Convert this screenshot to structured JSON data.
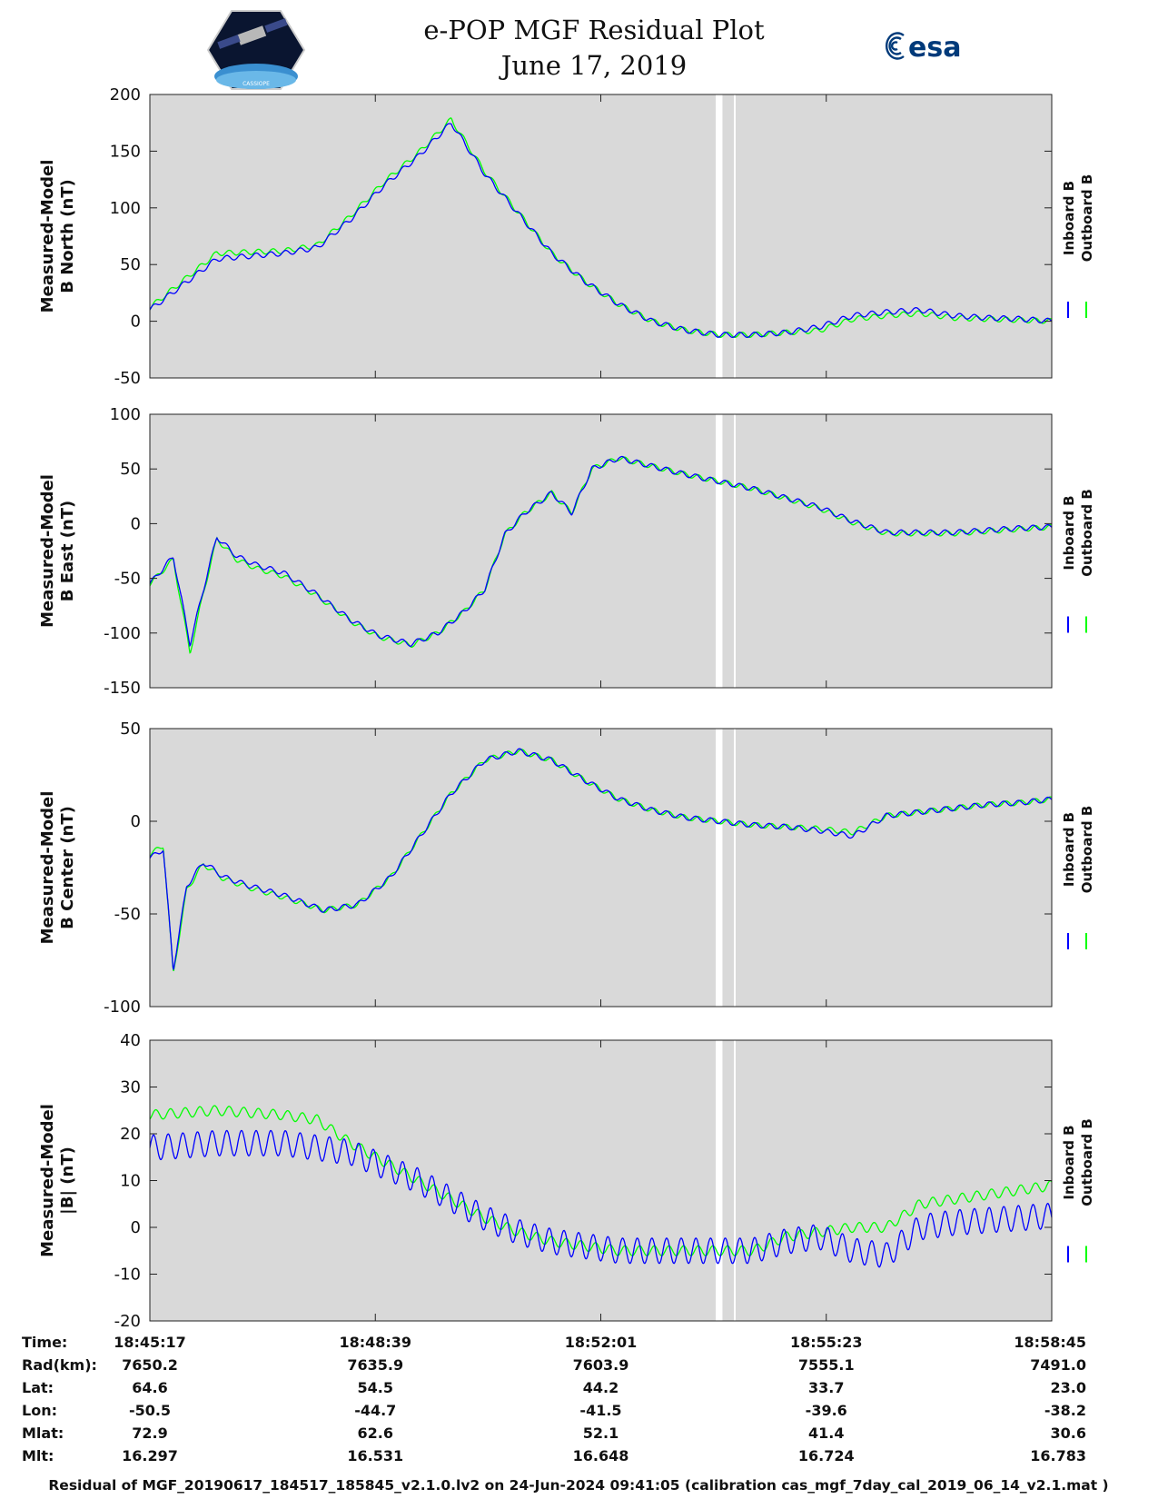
{
  "title": "e-POP MGF Residual Plot",
  "subtitle": "June 17, 2019",
  "logos": {
    "left": "CASSIOPE",
    "right": "esa"
  },
  "colors": {
    "inboard": "#0000ff",
    "outboard": "#00ff00",
    "panel_bg": "#d9d9d9",
    "gap": "#ffffff"
  },
  "legend": {
    "inboard": "Inboard B",
    "outboard": "Outboard B"
  },
  "chart_data": [
    {
      "type": "line",
      "title": "",
      "ylabel_line1": "Measured-Model",
      "ylabel_line2": "B North (nT)",
      "ylim": [
        -50,
        200
      ],
      "yticks": [
        -50,
        0,
        50,
        100,
        150,
        200
      ],
      "ytick_labels": [
        "-50",
        "0",
        "50",
        "100",
        "150",
        "200"
      ],
      "x_minutes": [
        0,
        1,
        2,
        2.5,
        3,
        3.5,
        4,
        4.5,
        5,
        5.5,
        6,
        6.5,
        7,
        7.5,
        8,
        8.5,
        9,
        9.5,
        10,
        10.5,
        11,
        11.5,
        12,
        12.5,
        13,
        13.5
      ],
      "series": [
        {
          "name": "Inboard B",
          "values": [
            10,
            55,
            60,
            65,
            90,
            120,
            145,
            175,
            130,
            95,
            60,
            35,
            15,
            0,
            -8,
            -12,
            -12,
            -10,
            -5,
            5,
            8,
            10,
            5,
            3,
            2,
            0
          ]
        },
        {
          "name": "Outboard B",
          "values": [
            12,
            60,
            62,
            67,
            93,
            123,
            148,
            178,
            132,
            96,
            60,
            35,
            15,
            0,
            -8,
            -12,
            -12,
            -10,
            -8,
            2,
            5,
            7,
            3,
            2,
            1,
            0
          ]
        }
      ]
    },
    {
      "type": "line",
      "title": "",
      "ylabel_line1": "Measured-Model",
      "ylabel_line2": "B East (nT)",
      "ylim": [
        -150,
        100
      ],
      "yticks": [
        -150,
        -100,
        -50,
        0,
        50,
        100
      ],
      "ytick_labels": [
        "-150",
        "-100",
        "-50",
        "0",
        "50",
        "100"
      ],
      "x_minutes": [
        0,
        0.35,
        0.6,
        0.8,
        1.0,
        1.3,
        1.6,
        2.0,
        2.5,
        3.0,
        3.4,
        3.9,
        4.3,
        4.7,
        5.0,
        5.3,
        5.6,
        6.0,
        6.3,
        6.6,
        7.0,
        8.0,
        9.0,
        10.0,
        10.5,
        11.0,
        12.0,
        13.0,
        13.5
      ],
      "series": [
        {
          "name": "Inboard B",
          "values": [
            -55,
            -30,
            -110,
            -60,
            -12,
            -30,
            -38,
            -45,
            -65,
            -88,
            -102,
            -110,
            -100,
            -80,
            -60,
            -10,
            10,
            28,
            10,
            50,
            60,
            45,
            32,
            15,
            2,
            -8,
            -8,
            -4,
            -3
          ]
        },
        {
          "name": "Outboard B",
          "values": [
            -55,
            -33,
            -118,
            -63,
            -14,
            -33,
            -41,
            -48,
            -66,
            -89,
            -103,
            -111,
            -100,
            -80,
            -60,
            -10,
            10,
            28,
            10,
            50,
            60,
            45,
            32,
            14,
            1,
            -9,
            -9,
            -5,
            -3
          ]
        }
      ]
    },
    {
      "type": "line",
      "title": "",
      "ylabel_line1": "Measured-Model",
      "ylabel_line2": "B Center (nT)",
      "ylim": [
        -100,
        50
      ],
      "yticks": [
        -100,
        -50,
        0,
        50
      ],
      "ytick_labels": [
        "-100",
        "-50",
        "0",
        "50"
      ],
      "x_minutes": [
        0,
        0.2,
        0.35,
        0.55,
        0.8,
        1.1,
        1.5,
        2.0,
        2.6,
        3.1,
        3.6,
        4.0,
        4.5,
        5.0,
        5.5,
        6.0,
        6.5,
        7.0,
        7.5,
        8.0,
        8.5,
        9.0,
        9.5,
        10.0,
        10.5,
        11.0,
        11.5,
        12.0,
        12.5,
        13.0,
        13.5
      ],
      "series": [
        {
          "name": "Inboard B",
          "values": [
            -20,
            -15,
            -80,
            -35,
            -22,
            -30,
            -35,
            -40,
            -48,
            -45,
            -30,
            -10,
            15,
            33,
            38,
            33,
            22,
            12,
            6,
            2,
            0,
            -2,
            -3,
            -5,
            -8,
            3,
            5,
            7,
            9,
            10,
            12
          ]
        },
        {
          "name": "Outboard B",
          "values": [
            -18,
            -13,
            -82,
            -37,
            -23,
            -31,
            -36,
            -41,
            -48,
            -45,
            -30,
            -10,
            15,
            33,
            38,
            33,
            22,
            12,
            6,
            2,
            0,
            -2,
            -3,
            -4,
            -6,
            3,
            5,
            7,
            9,
            10,
            12
          ]
        }
      ]
    },
    {
      "type": "line",
      "title": "",
      "ylabel_line1": "Measured-Model",
      "ylabel_line2": "|B| (nT)",
      "ylim": [
        -20,
        40
      ],
      "yticks": [
        -20,
        -10,
        0,
        10,
        20,
        30,
        40
      ],
      "ytick_labels": [
        "-20",
        "-10",
        "0",
        "10",
        "20",
        "30",
        "40"
      ],
      "x_minutes": [
        0,
        1,
        2,
        2.5,
        3,
        3.5,
        4,
        4.5,
        5,
        5.5,
        6,
        6.5,
        7,
        7.5,
        8,
        8.5,
        9,
        9.5,
        10,
        10.5,
        11,
        11.5,
        12,
        12.5,
        13,
        13.5
      ],
      "series": [
        {
          "name": "Inboard B",
          "values": [
            17,
            18,
            18,
            17,
            16,
            13,
            10,
            6,
            2,
            -1,
            -3,
            -4,
            -5,
            -5,
            -5,
            -5,
            -5,
            -3,
            -2,
            -5,
            -6,
            0,
            1,
            1.5,
            2,
            2.5
          ]
        },
        {
          "name": "Outboard B",
          "values": [
            24,
            25,
            24,
            23,
            18,
            14,
            10,
            6,
            2,
            -1,
            -3,
            -4,
            -5,
            -5,
            -5,
            -5,
            -5,
            -2,
            -1,
            0,
            0,
            5,
            6,
            7,
            8,
            9
          ]
        }
      ]
    }
  ],
  "x_axis": {
    "ticks_minutes": [
      0,
      3.3667,
      6.7333,
      10.1,
      13.4667
    ],
    "range_minutes": [
      0,
      13.4667
    ],
    "gap_minutes": [
      [
        8.45,
        8.55
      ],
      [
        8.72,
        8.74
      ]
    ],
    "labels": [
      "Time:",
      "Rad(km):",
      "Lat:",
      "Lon:",
      "Mlat:",
      "Mlt:"
    ],
    "columns": [
      {
        "time": "18:45:17",
        "rad": "7650.2",
        "lat": "64.6",
        "lon": "-50.5",
        "mlat": "72.9",
        "mlt": "16.297"
      },
      {
        "time": "18:48:39",
        "rad": "7635.9",
        "lat": "54.5",
        "lon": "-44.7",
        "mlat": "62.6",
        "mlt": "16.531"
      },
      {
        "time": "18:52:01",
        "rad": "7603.9",
        "lat": "44.2",
        "lon": "-41.5",
        "mlat": "52.1",
        "mlt": "16.648"
      },
      {
        "time": "18:55:23",
        "rad": "7555.1",
        "lat": "33.7",
        "lon": "-39.6",
        "mlat": "41.4",
        "mlt": "16.724"
      },
      {
        "time": "18:58:45",
        "rad": "7491.0",
        "lat": "23.0",
        "lon": "-38.2",
        "mlat": "30.6",
        "mlt": "16.783"
      }
    ]
  },
  "footer": "Residual of MGF_20190617_184517_185845_v2.1.0.lv2 on 24-Jun-2024 09:41:05 (calibration cas_mgf_7day_cal_2019_06_14_v2.1.mat )"
}
